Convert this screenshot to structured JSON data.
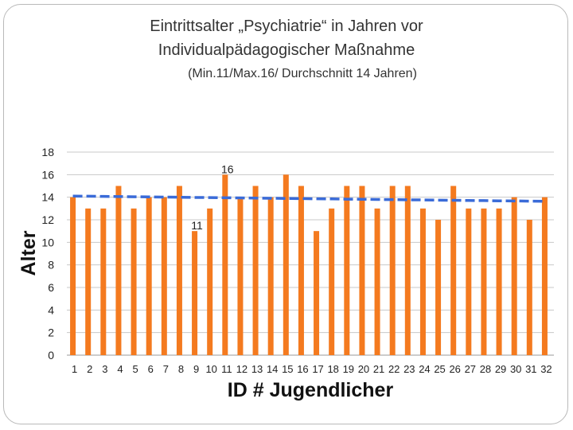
{
  "slide": {
    "title_line1": "Eintrittsalter „Psychiatrie“ in Jahren vor",
    "title_line2": "Individualpädagogischer Maßnahme",
    "subtitle": "(Min.11/Max.16/ Durchschnitt 14 Jahren)"
  },
  "chart_data": {
    "type": "bar",
    "title": "",
    "xlabel": "ID # Jugendlicher",
    "ylabel": "Alter",
    "ylim": [
      0,
      18
    ],
    "yticks": [
      0,
      2,
      4,
      6,
      8,
      10,
      12,
      14,
      16,
      18
    ],
    "grid": true,
    "categories": [
      "1",
      "2",
      "3",
      "4",
      "5",
      "6",
      "7",
      "8",
      "9",
      "10",
      "11",
      "12",
      "13",
      "14",
      "15",
      "16",
      "17",
      "18",
      "19",
      "20",
      "21",
      "22",
      "23",
      "24",
      "25",
      "26",
      "27",
      "28",
      "29",
      "30",
      "31",
      "32"
    ],
    "series": [
      {
        "values": [
          14,
          13,
          13,
          15,
          13,
          14,
          14,
          15,
          11,
          13,
          16,
          14,
          15,
          14,
          16,
          15,
          11,
          13,
          15,
          15,
          13,
          15,
          15,
          13,
          12,
          15,
          13,
          13,
          13,
          14,
          12,
          14
        ],
        "color": "#f47a1f"
      }
    ],
    "trendline": {
      "type": "linear",
      "style": "dashed",
      "color": "#3a6bd8",
      "values": [
        14.1,
        14.09,
        14.07,
        14.06,
        14.04,
        14.03,
        14.01,
        14.0,
        13.98,
        13.97,
        13.95,
        13.94,
        13.92,
        13.91,
        13.89,
        13.88,
        13.86,
        13.85,
        13.83,
        13.82,
        13.8,
        13.79,
        13.77,
        13.76,
        13.74,
        13.73,
        13.71,
        13.7,
        13.68,
        13.67,
        13.65,
        13.64
      ]
    },
    "data_labels": [
      {
        "category": "9",
        "text": "11"
      },
      {
        "category": "11",
        "text": "16"
      }
    ]
  }
}
